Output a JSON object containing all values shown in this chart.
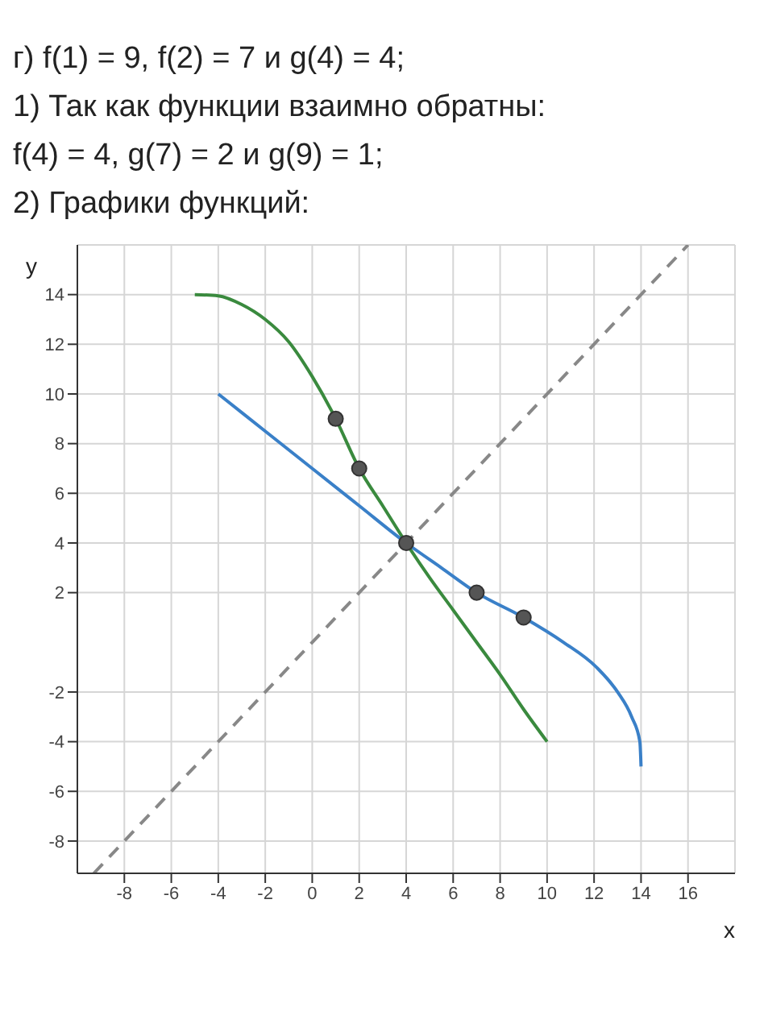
{
  "chart_data": {
    "type": "line",
    "title": "г) f(1) = 9,  f(2) = 7 и g(4) = 4;",
    "annotations": [
      "1) Так как функции взаимно обратны:",
      "f(4) = 4,  g(7) = 2 и g(9) = 1;",
      "2) Графики функций:"
    ],
    "xlabel": "x",
    "ylabel": "y",
    "xlim": [
      -10,
      18
    ],
    "ylim": [
      -9.3,
      16
    ],
    "xticks": [
      -8,
      -6,
      -4,
      -2,
      0,
      2,
      4,
      6,
      8,
      10,
      12,
      14,
      16
    ],
    "yticks": [
      -8,
      -6,
      -4,
      -2,
      2,
      4,
      6,
      8,
      10,
      12,
      14
    ],
    "grid": true,
    "legend": false,
    "marker": "none",
    "line_style": "solid",
    "series": [
      {
        "color": "#3a8a3e",
        "x": [
          -5,
          -4,
          -3,
          -2,
          -1,
          0,
          1,
          2,
          3,
          4,
          5,
          6,
          7,
          8,
          9,
          10
        ],
        "values": [
          14,
          13.95,
          13.6,
          13,
          12.1,
          10.7,
          9,
          7,
          5.5,
          4,
          2.6,
          1.3,
          0,
          -1.3,
          -2.7,
          -4
        ]
      },
      {
        "color": "#3a80c8",
        "x": [
          -4,
          -2,
          0,
          2,
          4,
          5.5,
          7,
          9,
          10.7,
          12.1,
          13,
          13.6,
          13.95,
          14
        ],
        "values": [
          10,
          8.5,
          7,
          5.5,
          4,
          3,
          2,
          1,
          0,
          -1,
          -2,
          -3,
          -4,
          -5
        ]
      },
      {
        "color": "#888888",
        "line_style": "dashed",
        "x": [
          -9.3,
          16
        ],
        "values": [
          -9.3,
          16
        ]
      },
      {
        "type": "scatter",
        "color": "#555555",
        "marker": "circle",
        "x": [
          1,
          2,
          4,
          7,
          9
        ],
        "values": [
          9,
          7,
          4,
          2,
          1
        ]
      }
    ]
  }
}
